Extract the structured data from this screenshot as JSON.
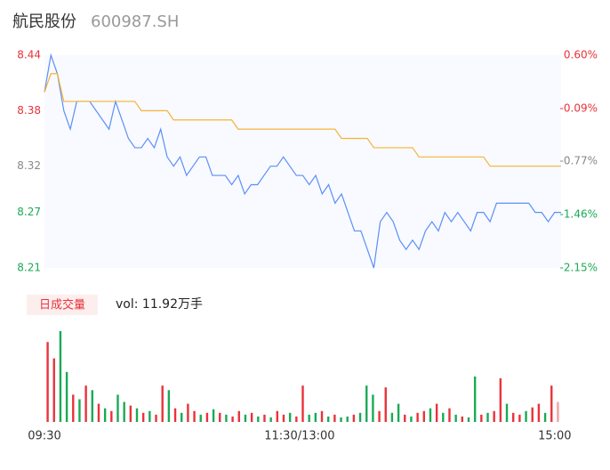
{
  "chart_data": [
    {
      "type": "line",
      "title": "航民股份",
      "subtitle": "600987.SH",
      "xlim": [
        0,
        240
      ],
      "x": [
        0,
        3,
        6,
        9,
        12,
        15,
        18,
        21,
        24,
        27,
        30,
        33,
        36,
        39,
        42,
        45,
        48,
        51,
        54,
        57,
        60,
        63,
        66,
        69,
        72,
        75,
        78,
        81,
        84,
        87,
        90,
        93,
        96,
        99,
        102,
        105,
        108,
        111,
        114,
        117,
        120,
        123,
        126,
        129,
        132,
        135,
        138,
        141,
        144,
        147,
        150,
        153,
        156,
        159,
        162,
        165,
        168,
        171,
        174,
        177,
        180,
        183,
        186,
        189,
        192,
        195,
        198,
        201,
        204,
        207,
        210,
        213,
        216,
        219,
        222,
        225,
        228,
        231,
        234,
        237,
        240
      ],
      "ylim": [
        8.21,
        8.44
      ],
      "yticks": [
        8.44,
        8.38,
        8.32,
        8.27,
        8.21
      ],
      "ytick_colors": [
        "#e8333a",
        "#e8333a",
        "#888888",
        "#1aaa55",
        "#1aaa55"
      ],
      "y2lim": [
        -2.15,
        0.6
      ],
      "y2ticks": [
        {
          "value": 0.6,
          "label": "0.60%"
        },
        {
          "value": -0.09,
          "label": "-0.09%"
        },
        {
          "value": -0.77,
          "label": "-0.77%"
        },
        {
          "value": -1.46,
          "label": "-1.46%"
        },
        {
          "value": -2.15,
          "label": "-2.15%"
        }
      ],
      "series": [
        {
          "color": "#5b8ff9",
          "values": [
            8.4,
            8.44,
            8.42,
            8.38,
            8.36,
            8.39,
            8.39,
            8.39,
            8.38,
            8.37,
            8.36,
            8.39,
            8.37,
            8.35,
            8.34,
            8.34,
            8.35,
            8.34,
            8.36,
            8.33,
            8.32,
            8.33,
            8.31,
            8.32,
            8.33,
            8.33,
            8.31,
            8.31,
            8.31,
            8.3,
            8.31,
            8.29,
            8.3,
            8.3,
            8.31,
            8.32,
            8.32,
            8.33,
            8.32,
            8.31,
            8.31,
            8.3,
            8.31,
            8.29,
            8.3,
            8.28,
            8.29,
            8.27,
            8.25,
            8.25,
            8.23,
            8.21,
            8.26,
            8.27,
            8.26,
            8.24,
            8.23,
            8.24,
            8.23,
            8.25,
            8.26,
            8.25,
            8.27,
            8.26,
            8.27,
            8.26,
            8.25,
            8.27,
            8.27,
            8.26,
            8.28,
            8.28,
            8.28,
            8.28,
            8.28,
            8.28,
            8.27,
            8.27,
            8.26,
            8.27,
            8.27
          ]
        },
        {
          "color": "#f5b335",
          "values": [
            8.4,
            8.42,
            8.42,
            8.39,
            8.39,
            8.39,
            8.39,
            8.39,
            8.39,
            8.39,
            8.39,
            8.39,
            8.39,
            8.39,
            8.39,
            8.38,
            8.38,
            8.38,
            8.38,
            8.38,
            8.37,
            8.37,
            8.37,
            8.37,
            8.37,
            8.37,
            8.37,
            8.37,
            8.37,
            8.37,
            8.36,
            8.36,
            8.36,
            8.36,
            8.36,
            8.36,
            8.36,
            8.36,
            8.36,
            8.36,
            8.36,
            8.36,
            8.36,
            8.36,
            8.36,
            8.36,
            8.35,
            8.35,
            8.35,
            8.35,
            8.35,
            8.34,
            8.34,
            8.34,
            8.34,
            8.34,
            8.34,
            8.34,
            8.33,
            8.33,
            8.33,
            8.33,
            8.33,
            8.33,
            8.33,
            8.33,
            8.33,
            8.33,
            8.33,
            8.32,
            8.32,
            8.32,
            8.32,
            8.32,
            8.32,
            8.32,
            8.32,
            8.32,
            8.32,
            8.32,
            8.32
          ]
        }
      ]
    },
    {
      "type": "bar",
      "legend_badge": "日成交量",
      "legend_text": "vol: 11.92万手",
      "xlim": [
        0,
        243
      ],
      "xticks": [
        {
          "value": 0,
          "label": "09:30"
        },
        {
          "value": 120,
          "label": "11:30/13:00"
        },
        {
          "value": 240,
          "label": "15:00"
        }
      ],
      "ylim": [
        0,
        100
      ],
      "values": [
        88,
        70,
        100,
        55,
        30,
        25,
        40,
        35,
        20,
        15,
        12,
        30,
        22,
        18,
        15,
        10,
        12,
        8,
        40,
        35,
        15,
        10,
        20,
        12,
        8,
        10,
        14,
        10,
        8,
        6,
        12,
        8,
        10,
        6,
        8,
        5,
        12,
        8,
        10,
        6,
        40,
        8,
        10,
        12,
        6,
        8,
        5,
        6,
        8,
        10,
        40,
        30,
        12,
        38,
        10,
        20,
        8,
        6,
        10,
        12,
        15,
        20,
        10,
        15,
        8,
        6,
        5,
        50,
        8,
        10,
        12,
        48,
        20,
        10,
        8,
        12,
        16,
        20,
        10,
        40,
        22
      ],
      "colors": [
        "#e8333a",
        "#e8333a",
        "#1aaa55",
        "#1aaa55",
        "#e8333a",
        "#1aaa55",
        "#e8333a",
        "#1aaa55",
        "#e8333a",
        "#1aaa55",
        "#e8333a",
        "#1aaa55",
        "#1aaa55",
        "#e8333a",
        "#1aaa55",
        "#e8333a",
        "#1aaa55",
        "#e8333a",
        "#e8333a",
        "#1aaa55",
        "#e8333a",
        "#1aaa55",
        "#e8333a",
        "#e8333a",
        "#1aaa55",
        "#e8333a",
        "#1aaa55",
        "#e8333a",
        "#1aaa55",
        "#e8333a",
        "#e8333a",
        "#1aaa55",
        "#e8333a",
        "#1aaa55",
        "#e8333a",
        "#1aaa55",
        "#e8333a",
        "#e8333a",
        "#1aaa55",
        "#e8333a",
        "#e8333a",
        "#1aaa55",
        "#1aaa55",
        "#e8333a",
        "#1aaa55",
        "#e8333a",
        "#1aaa55",
        "#1aaa55",
        "#e8333a",
        "#1aaa55",
        "#1aaa55",
        "#1aaa55",
        "#e8333a",
        "#e8333a",
        "#1aaa55",
        "#1aaa55",
        "#e8333a",
        "#1aaa55",
        "#e8333a",
        "#e8333a",
        "#1aaa55",
        "#e8333a",
        "#1aaa55",
        "#e8333a",
        "#1aaa55",
        "#e8333a",
        "#1aaa55",
        "#1aaa55",
        "#e8333a",
        "#1aaa55",
        "#e8333a",
        "#e8333a",
        "#1aaa55",
        "#e8333a",
        "#e8333a",
        "#1aaa55",
        "#e8333a",
        "#e8333a",
        "#1aaa55",
        "#e8333a",
        "#f4a0a0"
      ]
    }
  ]
}
